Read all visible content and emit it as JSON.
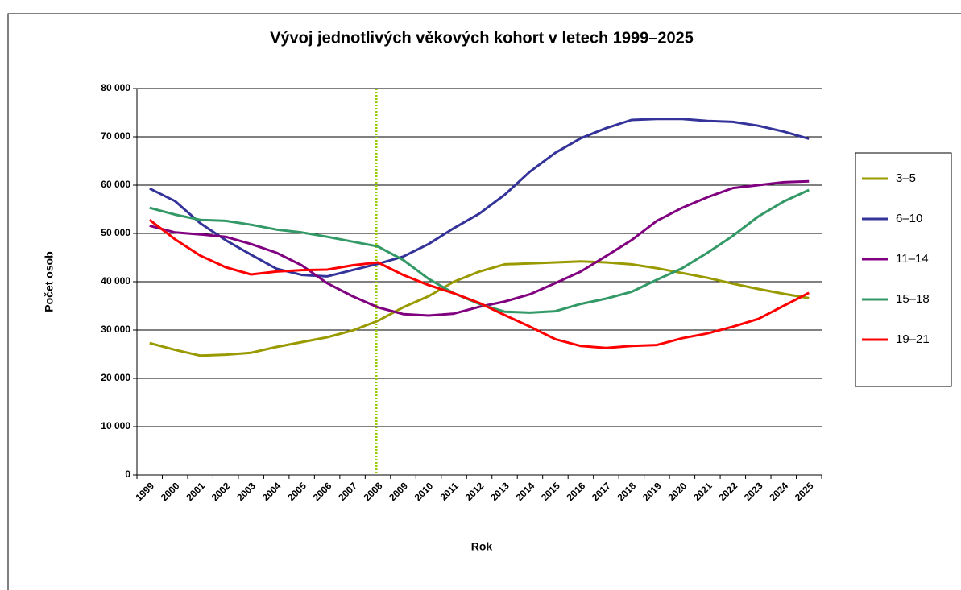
{
  "chart_data": {
    "type": "line",
    "title": "Vývoj jednotlivých věkových kohort v letech 1999–2025",
    "x_label": "Rok",
    "y_label": "Počet osob",
    "categories": [
      "1999",
      "2000",
      "2001",
      "2002",
      "2003",
      "2004",
      "2005",
      "2006",
      "2007",
      "2008",
      "2009",
      "2010",
      "2011",
      "2012",
      "2013",
      "2014",
      "2015",
      "2016",
      "2017",
      "2018",
      "2019",
      "2020",
      "2021",
      "2022",
      "2023",
      "2024",
      "2025"
    ],
    "series": [
      {
        "name": "3–5",
        "color": "#999900",
        "values": [
          27300,
          25900,
          24700,
          24900,
          25300,
          26500,
          27500,
          28500,
          29900,
          31900,
          34700,
          37000,
          40000,
          42100,
          43600,
          43800,
          44000,
          44200,
          44000,
          43600,
          42800,
          41800,
          40800,
          39600,
          38500,
          37500,
          36600
        ]
      },
      {
        "name": "6–10",
        "color": "#333399",
        "values": [
          59300,
          56700,
          52100,
          48600,
          45600,
          42700,
          41400,
          41100,
          42400,
          43700,
          45200,
          47800,
          51100,
          54100,
          58000,
          62800,
          66700,
          69700,
          71800,
          73500,
          73700,
          73700,
          73300,
          73100,
          72300,
          71100,
          69600
        ]
      },
      {
        "name": "11–14",
        "color": "#800080",
        "values": [
          51600,
          50200,
          49800,
          49300,
          47800,
          46000,
          43400,
          39700,
          37000,
          34700,
          33300,
          33000,
          33400,
          34800,
          35900,
          37400,
          39700,
          42100,
          45300,
          48600,
          52600,
          55300,
          57500,
          59400,
          60000,
          60600,
          60800
        ]
      },
      {
        "name": "15–18",
        "color": "#339966",
        "values": [
          55300,
          53900,
          52800,
          52600,
          51800,
          50800,
          50200,
          49300,
          48300,
          47300,
          44500,
          40600,
          37600,
          35400,
          33800,
          33600,
          33900,
          35400,
          36500,
          37900,
          40400,
          42800,
          46000,
          49500,
          53500,
          56600,
          59000
        ]
      },
      {
        "name": "19–21",
        "color": "#ff0000",
        "values": [
          52800,
          48800,
          45400,
          43000,
          41500,
          42100,
          42400,
          42500,
          43400,
          44000,
          41400,
          39300,
          37600,
          35600,
          33100,
          30700,
          28100,
          26700,
          26300,
          26700,
          26900,
          28300,
          29300,
          30700,
          32300,
          35000,
          37700
        ]
      }
    ],
    "ylim": [
      0,
      80000
    ],
    "yticks": [
      0,
      {
        "value": 10000,
        "label": "10 000"
      },
      {
        "value": 20000,
        "label": "20 000"
      },
      {
        "value": 30000,
        "label": "30 000"
      },
      {
        "value": 40000,
        "label": "40 000"
      },
      {
        "value": 50000,
        "label": "50 000"
      },
      {
        "value": 60000,
        "label": "60 000"
      },
      {
        "value": 70000,
        "label": "70 000"
      },
      {
        "value": 80000,
        "label": "80 000"
      }
    ],
    "grid": true,
    "legend": "right",
    "vline_category": "2008",
    "vline_color": "#99cc00"
  }
}
